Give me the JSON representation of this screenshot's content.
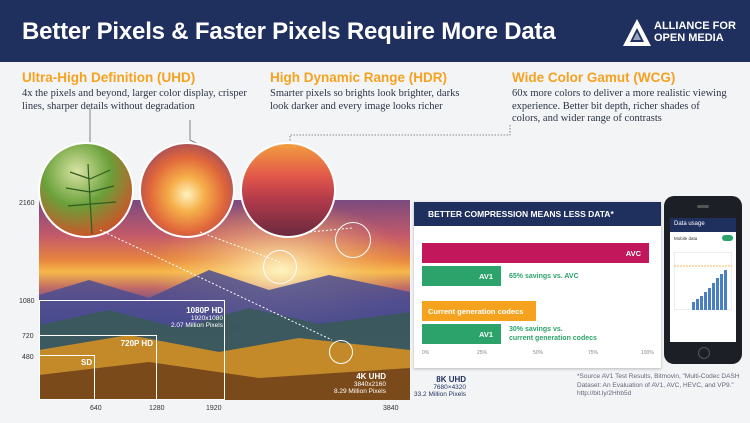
{
  "header": {
    "title": "Better Pixels & Faster Pixels Require More Data",
    "logo_line1": "ALLIANCE FOR",
    "logo_line2": "OPEN MEDIA"
  },
  "features": [
    {
      "title": "Ultra-High Definition (UHD)",
      "text": "4x the pixels and beyond, larger color display, crisper lines, sharper details without degradation"
    },
    {
      "title": "High Dynamic Range (HDR)",
      "text": "Smarter pixels so brights look brighter, darks look darker and every image looks richer"
    },
    {
      "title": "Wide Color Gamut (WCG)",
      "text": "60x more colors to deliver a more realistic viewing experience. Better bit depth, richer shades of colors, and wider range of contrasts"
    }
  ],
  "resolution": {
    "y_ticks": [
      "2160",
      "1080",
      "720",
      "480"
    ],
    "x_ticks": [
      "640",
      "1280",
      "1920",
      "3840"
    ],
    "tiers": [
      {
        "name": "SD",
        "dims": "",
        "pixels": ""
      },
      {
        "name": "720P HD",
        "dims": "",
        "pixels": ""
      },
      {
        "name": "1080P HD",
        "dims": "1920x1080",
        "pixels": "2.07 Million Pixels"
      },
      {
        "name": "4K UHD",
        "dims": "3840x2160",
        "pixels": "8.29 Million Pixels"
      },
      {
        "name": "8K UHD",
        "dims": "7680×4320",
        "pixels": "33.2 Million Pixels"
      }
    ]
  },
  "compression": {
    "title": "BETTER COMPRESSION MEANS LESS DATA*",
    "rows": [
      {
        "label": "AVC",
        "value": 100,
        "color": "#c2185b"
      },
      {
        "label": "AV1",
        "value": 35,
        "color": "#2ba36a",
        "note": "65% savings vs. AVC"
      },
      {
        "label": "Current generation codecs",
        "value": 50,
        "color": "#f5a21f"
      },
      {
        "label": "AV1",
        "value": 35,
        "color": "#2ba36a",
        "note1": "30% savings vs.",
        "note2": "current generation codecs"
      }
    ],
    "ticks": [
      "0%",
      "25%",
      "50%",
      "75%",
      "100%"
    ]
  },
  "phone": {
    "app_title": "Data usage",
    "mobile_label": "Mobile data"
  },
  "source": "*Source AV1 Test Results, Bitmovin, \"Multi-Codec DASH Dataset: An Evaluation of AV1, AVC, HEVC, and VP9.\" http://bit.ly/2Hhb5d",
  "colors": {
    "navy": "#1f2f5e",
    "orange": "#f5a21f",
    "magenta": "#c2185b",
    "green": "#2ba36a"
  }
}
